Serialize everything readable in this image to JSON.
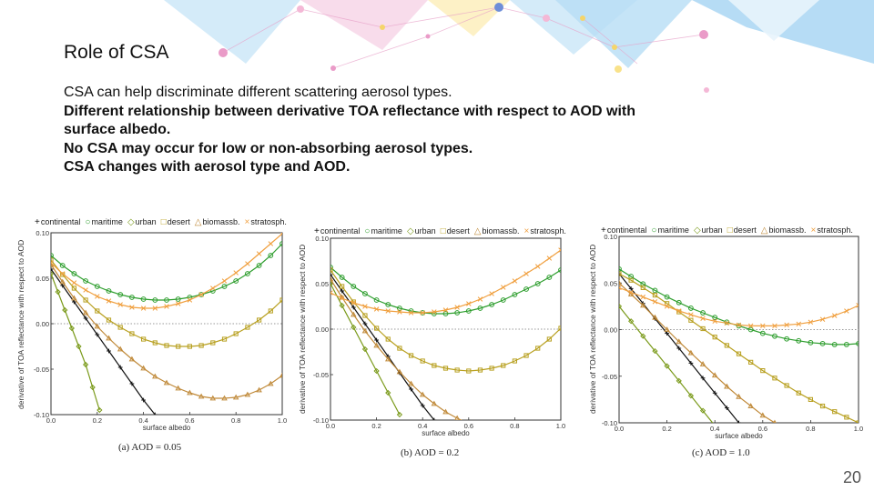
{
  "slide": {
    "title": "Role of CSA",
    "lines": [
      "CSA can help discriminate different scattering aerosol types.",
      "Different relationship between derivative TOA reflectance with respect to AOD with",
      "surface albedo.",
      "No CSA may occur for low or non-absorbing aerosol types.",
      "CSA changes with aerosol type and AOD."
    ],
    "page_number": "20"
  },
  "legend": {
    "items": [
      {
        "symbol": "+",
        "label": "continental",
        "color": "#111111"
      },
      {
        "symbol": "○",
        "label": "maritime",
        "color": "#2e9e2e"
      },
      {
        "symbol": "◇",
        "label": "urban",
        "color": "#7a9a1a"
      },
      {
        "symbol": "□",
        "label": "desert",
        "color": "#b8a020"
      },
      {
        "symbol": "△",
        "label": "biomassb.",
        "color": "#c08a3a"
      },
      {
        "symbol": "×",
        "label": "stratosph.",
        "color": "#f0a040"
      }
    ]
  },
  "chart_data": [
    {
      "type": "line",
      "caption": "(a) AOD = 0.05",
      "xlabel": "surface albedo",
      "ylabel": "derivative of TOA reflectance with respect to AOD",
      "xlim": [
        0,
        1.0
      ],
      "ylim": [
        -0.1,
        0.1
      ],
      "xticks": [
        "0.0",
        "0.2",
        "0.4",
        "0.6",
        "0.8",
        "1.0"
      ],
      "yticks": [
        "0.10",
        "0.05",
        "0.00",
        "-0.05",
        "-0.10"
      ],
      "series": [
        {
          "name": "continental",
          "color": "#111111",
          "marker": "plus",
          "x": [
            0,
            0.05,
            0.1,
            0.15,
            0.2,
            0.25,
            0.3,
            0.35,
            0.4,
            0.45
          ],
          "y": [
            0.06,
            0.042,
            0.024,
            0.006,
            -0.012,
            -0.03,
            -0.048,
            -0.066,
            -0.084,
            -0.1
          ]
        },
        {
          "name": "maritime",
          "color": "#2e9e2e",
          "marker": "circle",
          "x": [
            0,
            0.05,
            0.1,
            0.15,
            0.2,
            0.25,
            0.3,
            0.35,
            0.4,
            0.45,
            0.5,
            0.55,
            0.6,
            0.65,
            0.7,
            0.75,
            0.8,
            0.85,
            0.9,
            0.95,
            1.0
          ],
          "y": [
            0.075,
            0.064,
            0.055,
            0.047,
            0.041,
            0.036,
            0.032,
            0.029,
            0.027,
            0.026,
            0.026,
            0.027,
            0.029,
            0.032,
            0.036,
            0.041,
            0.047,
            0.055,
            0.064,
            0.075,
            0.088
          ]
        },
        {
          "name": "urban",
          "color": "#7a9a1a",
          "marker": "diamond",
          "x": [
            0,
            0.03,
            0.06,
            0.09,
            0.12,
            0.15,
            0.18,
            0.21
          ],
          "y": [
            0.055,
            0.035,
            0.015,
            -0.005,
            -0.025,
            -0.045,
            -0.07,
            -0.095
          ]
        },
        {
          "name": "desert",
          "color": "#b8a020",
          "marker": "square",
          "x": [
            0,
            0.05,
            0.1,
            0.15,
            0.2,
            0.25,
            0.3,
            0.35,
            0.4,
            0.45,
            0.5,
            0.55,
            0.6,
            0.65,
            0.7,
            0.75,
            0.8,
            0.85,
            0.9,
            0.95,
            1.0
          ],
          "y": [
            0.07,
            0.054,
            0.039,
            0.026,
            0.014,
            0.004,
            -0.004,
            -0.011,
            -0.017,
            -0.021,
            -0.024,
            -0.025,
            -0.025,
            -0.024,
            -0.021,
            -0.017,
            -0.011,
            -0.004,
            0.004,
            0.014,
            0.026
          ]
        },
        {
          "name": "biomassb.",
          "color": "#c08a3a",
          "marker": "triangle",
          "x": [
            0,
            0.05,
            0.1,
            0.15,
            0.2,
            0.25,
            0.3,
            0.35,
            0.4,
            0.45,
            0.5,
            0.55,
            0.6,
            0.65,
            0.7,
            0.75,
            0.8,
            0.85,
            0.9,
            0.95,
            1.0
          ],
          "y": [
            0.065,
            0.046,
            0.028,
            0.012,
            -0.003,
            -0.016,
            -0.028,
            -0.039,
            -0.049,
            -0.058,
            -0.065,
            -0.071,
            -0.076,
            -0.08,
            -0.082,
            -0.082,
            -0.081,
            -0.078,
            -0.073,
            -0.066,
            -0.057
          ]
        },
        {
          "name": "stratosph.",
          "color": "#f0a040",
          "marker": "cross",
          "x": [
            0,
            0.05,
            0.1,
            0.15,
            0.2,
            0.25,
            0.3,
            0.35,
            0.4,
            0.45,
            0.5,
            0.55,
            0.6,
            0.65,
            0.7,
            0.75,
            0.8,
            0.85,
            0.9,
            0.95,
            1.0
          ],
          "y": [
            0.067,
            0.055,
            0.045,
            0.037,
            0.03,
            0.025,
            0.021,
            0.018,
            0.017,
            0.017,
            0.019,
            0.022,
            0.026,
            0.032,
            0.039,
            0.047,
            0.056,
            0.066,
            0.077,
            0.088,
            0.099
          ]
        }
      ]
    },
    {
      "type": "line",
      "caption": "(b) AOD = 0.2",
      "xlabel": "surface albedo",
      "ylabel": "derivative of TOA reflectance with respect to AOD",
      "xlim": [
        0,
        1.0
      ],
      "ylim": [
        -0.1,
        0.1
      ],
      "xticks": [
        "0.0",
        "0.2",
        "0.4",
        "0.6",
        "0.8",
        "1.0"
      ],
      "yticks": [
        "0.10",
        "0.05",
        "0.00",
        "-0.05",
        "-0.10"
      ],
      "series": [
        {
          "name": "continental",
          "color": "#111111",
          "marker": "plus",
          "x": [
            0,
            0.05,
            0.1,
            0.15,
            0.2,
            0.25,
            0.3,
            0.35,
            0.4,
            0.45
          ],
          "y": [
            0.06,
            0.042,
            0.024,
            0.006,
            -0.012,
            -0.03,
            -0.048,
            -0.066,
            -0.084,
            -0.1
          ]
        },
        {
          "name": "maritime",
          "color": "#2e9e2e",
          "marker": "circle",
          "x": [
            0,
            0.05,
            0.1,
            0.15,
            0.2,
            0.25,
            0.3,
            0.35,
            0.4,
            0.45,
            0.5,
            0.55,
            0.6,
            0.65,
            0.7,
            0.75,
            0.8,
            0.85,
            0.9,
            0.95,
            1.0
          ],
          "y": [
            0.068,
            0.057,
            0.047,
            0.039,
            0.032,
            0.027,
            0.023,
            0.02,
            0.018,
            0.017,
            0.017,
            0.018,
            0.02,
            0.023,
            0.027,
            0.032,
            0.038,
            0.044,
            0.05,
            0.057,
            0.065
          ]
        },
        {
          "name": "urban",
          "color": "#7a9a1a",
          "marker": "diamond",
          "x": [
            0,
            0.05,
            0.1,
            0.15,
            0.2,
            0.25,
            0.3
          ],
          "y": [
            0.05,
            0.026,
            0.002,
            -0.022,
            -0.046,
            -0.07,
            -0.094
          ]
        },
        {
          "name": "desert",
          "color": "#b8a020",
          "marker": "square",
          "x": [
            0,
            0.05,
            0.1,
            0.15,
            0.2,
            0.25,
            0.3,
            0.35,
            0.4,
            0.45,
            0.5,
            0.55,
            0.6,
            0.65,
            0.7,
            0.75,
            0.8,
            0.85,
            0.9,
            0.95,
            1.0
          ],
          "y": [
            0.065,
            0.047,
            0.03,
            0.015,
            0.001,
            -0.011,
            -0.021,
            -0.029,
            -0.035,
            -0.04,
            -0.043,
            -0.045,
            -0.046,
            -0.045,
            -0.043,
            -0.04,
            -0.035,
            -0.029,
            -0.021,
            -0.011,
            0.001
          ]
        },
        {
          "name": "biomassb.",
          "color": "#c08a3a",
          "marker": "triangle",
          "x": [
            0,
            0.05,
            0.1,
            0.15,
            0.2,
            0.25,
            0.3,
            0.35,
            0.4,
            0.45,
            0.5,
            0.55,
            0.6
          ],
          "y": [
            0.055,
            0.035,
            0.016,
            -0.002,
            -0.018,
            -0.033,
            -0.047,
            -0.06,
            -0.072,
            -0.082,
            -0.091,
            -0.098,
            -0.104
          ]
        },
        {
          "name": "stratosph.",
          "color": "#f0a040",
          "marker": "cross",
          "x": [
            0,
            0.05,
            0.1,
            0.15,
            0.2,
            0.25,
            0.3,
            0.35,
            0.4,
            0.45,
            0.5,
            0.55,
            0.6,
            0.65,
            0.7,
            0.75,
            0.8,
            0.85,
            0.9,
            0.95,
            1.0
          ],
          "y": [
            0.04,
            0.034,
            0.029,
            0.025,
            0.022,
            0.02,
            0.019,
            0.018,
            0.018,
            0.019,
            0.021,
            0.024,
            0.028,
            0.033,
            0.039,
            0.046,
            0.053,
            0.061,
            0.069,
            0.078,
            0.087
          ]
        }
      ]
    },
    {
      "type": "line",
      "caption": "(c) AOD = 1.0",
      "xlabel": "surface albedo",
      "ylabel": "derivative of TOA reflectance with respect to AOD",
      "xlim": [
        0,
        1.0
      ],
      "ylim": [
        -0.1,
        0.1
      ],
      "xticks": [
        "0.0",
        "0.2",
        "0.4",
        "0.6",
        "0.8",
        "1.0"
      ],
      "yticks": [
        "0.10",
        "0.05",
        "0.00",
        "-0.05",
        "-0.10"
      ],
      "series": [
        {
          "name": "continental",
          "color": "#111111",
          "marker": "plus",
          "x": [
            0,
            0.05,
            0.1,
            0.15,
            0.2,
            0.25,
            0.3,
            0.35,
            0.4,
            0.45,
            0.5
          ],
          "y": [
            0.06,
            0.044,
            0.028,
            0.012,
            -0.004,
            -0.02,
            -0.036,
            -0.052,
            -0.068,
            -0.084,
            -0.1
          ]
        },
        {
          "name": "maritime",
          "color": "#2e9e2e",
          "marker": "circle",
          "x": [
            0,
            0.05,
            0.1,
            0.15,
            0.2,
            0.25,
            0.3,
            0.35,
            0.4,
            0.45,
            0.5,
            0.55,
            0.6,
            0.65,
            0.7,
            0.75,
            0.8,
            0.85,
            0.9,
            0.95,
            1.0
          ],
          "y": [
            0.065,
            0.057,
            0.049,
            0.042,
            0.035,
            0.029,
            0.023,
            0.018,
            0.013,
            0.008,
            0.004,
            0.0,
            -0.004,
            -0.007,
            -0.01,
            -0.012,
            -0.014,
            -0.015,
            -0.016,
            -0.016,
            -0.015
          ]
        },
        {
          "name": "urban",
          "color": "#7a9a1a",
          "marker": "diamond",
          "x": [
            0,
            0.05,
            0.1,
            0.15,
            0.2,
            0.25,
            0.3,
            0.35,
            0.4
          ],
          "y": [
            0.025,
            0.009,
            -0.007,
            -0.023,
            -0.039,
            -0.055,
            -0.071,
            -0.087,
            -0.103
          ]
        },
        {
          "name": "desert",
          "color": "#b8a020",
          "marker": "square",
          "x": [
            0,
            0.05,
            0.1,
            0.15,
            0.2,
            0.25,
            0.3,
            0.35,
            0.4,
            0.45,
            0.5,
            0.55,
            0.6,
            0.65,
            0.7,
            0.75,
            0.8,
            0.85,
            0.9,
            0.95,
            1.0
          ],
          "y": [
            0.06,
            0.053,
            0.045,
            0.037,
            0.028,
            0.019,
            0.01,
            0.001,
            -0.008,
            -0.017,
            -0.026,
            -0.035,
            -0.044,
            -0.052,
            -0.06,
            -0.068,
            -0.075,
            -0.082,
            -0.088,
            -0.094,
            -0.1
          ]
        },
        {
          "name": "biomassb.",
          "color": "#c08a3a",
          "marker": "triangle",
          "x": [
            0,
            0.05,
            0.1,
            0.15,
            0.2,
            0.25,
            0.3,
            0.35,
            0.4,
            0.45,
            0.5,
            0.55,
            0.6,
            0.65,
            0.7,
            0.75
          ],
          "y": [
            0.05,
            0.038,
            0.026,
            0.013,
            0.0,
            -0.013,
            -0.025,
            -0.037,
            -0.049,
            -0.061,
            -0.072,
            -0.082,
            -0.092,
            -0.1,
            -0.108,
            -0.115
          ]
        },
        {
          "name": "stratosph.",
          "color": "#f0a040",
          "marker": "cross",
          "x": [
            0,
            0.05,
            0.1,
            0.15,
            0.2,
            0.25,
            0.3,
            0.35,
            0.4,
            0.45,
            0.5,
            0.55,
            0.6,
            0.65,
            0.7,
            0.75,
            0.8,
            0.85,
            0.9,
            0.95,
            1.0
          ],
          "y": [
            0.045,
            0.04,
            0.035,
            0.03,
            0.025,
            0.02,
            0.016,
            0.012,
            0.009,
            0.007,
            0.005,
            0.004,
            0.004,
            0.004,
            0.005,
            0.006,
            0.008,
            0.011,
            0.015,
            0.02,
            0.026
          ]
        }
      ]
    }
  ]
}
